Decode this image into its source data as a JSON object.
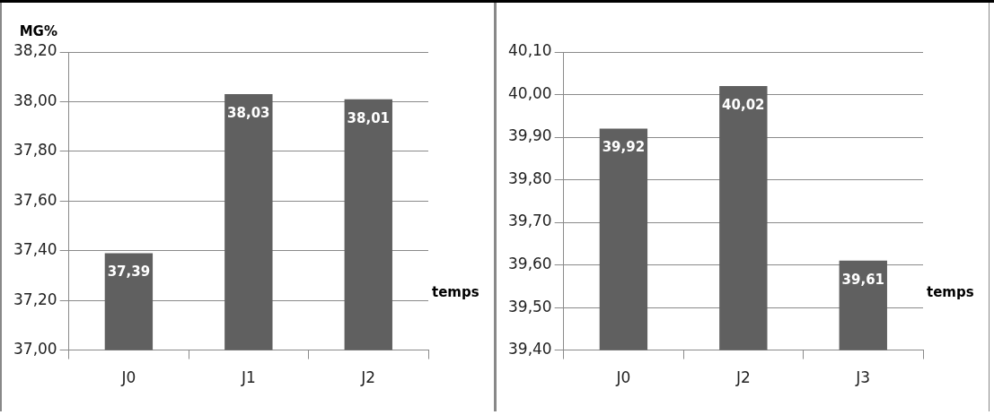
{
  "chart_data": [
    {
      "type": "bar",
      "ylabel": "MG%",
      "xlabel": "temps",
      "categories": [
        "J0",
        "J1",
        "J2"
      ],
      "values": [
        37.39,
        38.03,
        38.01
      ],
      "color": "#606060",
      "value_labels": [
        "37,39",
        "38,03",
        "38,01"
      ],
      "ylim": [
        37.0,
        38.2
      ],
      "yticks": [
        {
          "value": 37.0,
          "label": "37,00"
        },
        {
          "value": 37.2,
          "label": "37,20"
        },
        {
          "value": 37.4,
          "label": "37,40"
        },
        {
          "value": 37.6,
          "label": "37,60"
        },
        {
          "value": 37.8,
          "label": "37,80"
        },
        {
          "value": 38.0,
          "label": "38,00"
        },
        {
          "value": 38.2,
          "label": "38,20"
        }
      ],
      "grid": "y",
      "legend": false
    },
    {
      "type": "bar",
      "xlabel": "temps",
      "categories": [
        "J0",
        "J2",
        "J3"
      ],
      "values": [
        39.92,
        40.02,
        39.61
      ],
      "color": "#606060",
      "value_labels": [
        "39,92",
        "40,02",
        "39,61"
      ],
      "ylim": [
        39.4,
        40.1
      ],
      "yticks": [
        {
          "value": 39.4,
          "label": "39,40"
        },
        {
          "value": 39.5,
          "label": "39,50"
        },
        {
          "value": 39.6,
          "label": "39,60"
        },
        {
          "value": 39.7,
          "label": "39,70"
        },
        {
          "value": 39.8,
          "label": "39,80"
        },
        {
          "value": 39.9,
          "label": "39,90"
        },
        {
          "value": 40.0,
          "label": "40,00"
        },
        {
          "value": 40.1,
          "label": "40,10"
        }
      ],
      "grid": "y",
      "legend": false
    }
  ]
}
